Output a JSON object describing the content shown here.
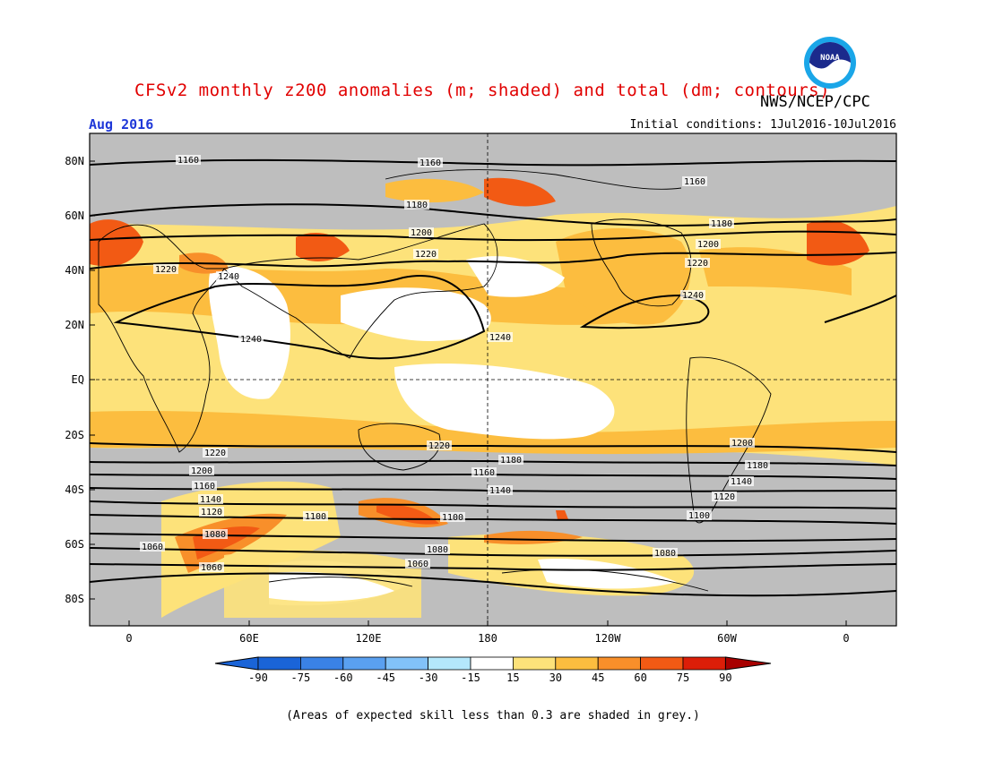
{
  "title": "CFSv2 monthly z200 anomalies (m; shaded) and total (dm; contours)",
  "agency": "NWS/NCEP/CPC",
  "logo_text": "NOAA",
  "month": "Aug 2016",
  "initial_conditions": "Initial conditions: 1Jul2016-10Jul2016",
  "footnote": "(Areas of expected skill less than 0.3 are shaded in grey.)",
  "colors": {
    "grey": "#bebebe",
    "white": "#ffffff",
    "15": "#fde27a",
    "30": "#fcbd3f",
    "45": "#f88f2a",
    "60": "#f25a14",
    "75": "#dc1e08"
  },
  "axes": {
    "lat_labels": [
      "80N",
      "60N",
      "40N",
      "20N",
      "EQ",
      "20S",
      "40S",
      "60S",
      "80S"
    ],
    "lon_labels": [
      "0",
      "60E",
      "120E",
      "180",
      "120W",
      "60W",
      "0"
    ]
  },
  "colorbar": {
    "ticks": [
      "-90",
      "-75",
      "-60",
      "-45",
      "-30",
      "-15",
      "15",
      "30",
      "45",
      "60",
      "75",
      "90"
    ],
    "colors": [
      "#1a64d8",
      "#3a82e6",
      "#5aa0f0",
      "#82c2f8",
      "#b4e8fc",
      "#ffffff",
      "#fde27a",
      "#fcbd3f",
      "#f88f2a",
      "#f25a14",
      "#dc1e08",
      "#a80000"
    ]
  },
  "contour_labels": [
    "1160",
    "1160",
    "1160",
    "1180",
    "1180",
    "1200",
    "1200",
    "1220",
    "1220",
    "1220",
    "1240",
    "1240",
    "1240",
    "1240",
    "1220",
    "1220",
    "1200",
    "1200",
    "1180",
    "1180",
    "1160",
    "1160",
    "1140",
    "1140",
    "1140",
    "1120",
    "1120",
    "1100",
    "1100",
    "1100",
    "1080",
    "1080",
    "1080",
    "1060",
    "1060",
    "1060"
  ]
}
